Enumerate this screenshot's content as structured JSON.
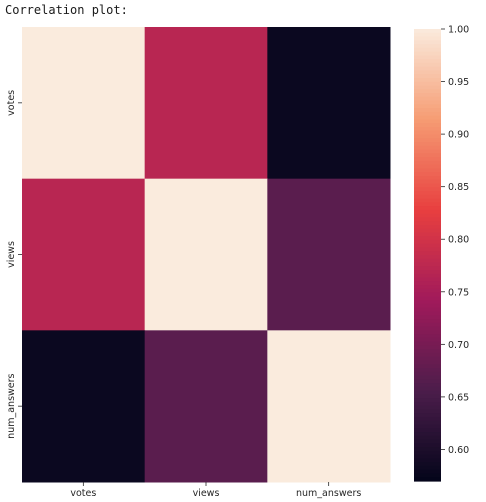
{
  "caption": "Correlation plot:",
  "chart_data": {
    "type": "heatmap",
    "x_categories": [
      "votes",
      "views",
      "num_answers"
    ],
    "y_categories": [
      "votes",
      "views",
      "num_answers"
    ],
    "values": [
      [
        1.0,
        0.77,
        0.58
      ],
      [
        0.77,
        1.0,
        0.67
      ],
      [
        0.58,
        0.67,
        1.0
      ]
    ],
    "colorbar": {
      "min": 0.57,
      "max": 1.0,
      "ticks": [
        0.6,
        0.65,
        0.7,
        0.75,
        0.8,
        0.85,
        0.9,
        0.95,
        1.0
      ],
      "tick_labels": [
        "0.60",
        "0.65",
        "0.70",
        "0.75",
        "0.80",
        "0.85",
        "0.90",
        "0.95",
        "1.00"
      ]
    },
    "colormap": "rocket",
    "colormap_stops": [
      "#03051a",
      "#4c1d4b",
      "#a11a5b",
      "#e83f3f",
      "#f69c73",
      "#faebdd"
    ]
  }
}
